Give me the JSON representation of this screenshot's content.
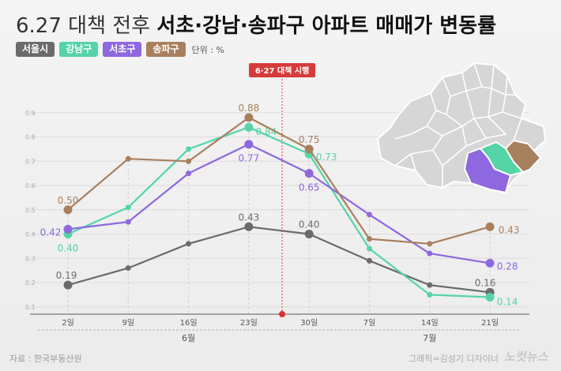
{
  "header": {
    "title_prefix": "6.27 대책 전후",
    "title_main": "서초·강남·송파구 아파트 매매가 변동률"
  },
  "legend": {
    "items": [
      {
        "label": "서울시",
        "color": "#6b6b6b"
      },
      {
        "label": "강남구",
        "color": "#55d4a8"
      },
      {
        "label": "서초구",
        "color": "#8e68df"
      },
      {
        "label": "송파구",
        "color": "#a8805d"
      }
    ],
    "unit": "단위 : %"
  },
  "annotation": {
    "label": "6·27 대책 시행",
    "color": "#d63a3a"
  },
  "footer": {
    "source": "자료 : 한국부동산원",
    "credit": "그래픽=김성기 디자이너",
    "brand": "노컷뉴스"
  },
  "map": {
    "highlight": [
      "서초구",
      "강남구",
      "송파구"
    ]
  },
  "chart_data": {
    "type": "line",
    "x": [
      "2일",
      "9일",
      "16일",
      "23일",
      "30일",
      "7일",
      "14일",
      "21일"
    ],
    "month_groups": [
      {
        "label": "6월",
        "start": 0,
        "end": 4
      },
      {
        "label": "7월",
        "start": 5,
        "end": 7
      }
    ],
    "yticks": [
      "0.1",
      "0.2",
      "0.3",
      "0.4",
      "0.5",
      "0.6",
      "0.7",
      "0.8",
      "0.9"
    ],
    "ylim": [
      0.07,
      1.0
    ],
    "event_between": [
      3,
      4
    ],
    "series": [
      {
        "name": "서울시",
        "color": "#6b6b6b",
        "values": [
          0.19,
          0.26,
          0.36,
          0.43,
          0.4,
          0.29,
          0.19,
          0.16
        ],
        "labels": [
          {
            "i": 0,
            "text": "0.19"
          },
          {
            "i": 3,
            "text": "0.43"
          },
          {
            "i": 4,
            "text": "0.40"
          },
          {
            "i": 7,
            "text": "0.16"
          }
        ]
      },
      {
        "name": "강남구",
        "color": "#55d4a8",
        "values": [
          0.4,
          0.51,
          0.75,
          0.84,
          0.73,
          0.34,
          0.15,
          0.14
        ],
        "labels": [
          {
            "i": 0,
            "text": "0.40"
          },
          {
            "i": 3,
            "text": "0.84"
          },
          {
            "i": 4,
            "text": "0.73"
          },
          {
            "i": 7,
            "text": "0.14"
          }
        ]
      },
      {
        "name": "서초구",
        "color": "#8e68df",
        "values": [
          0.42,
          0.45,
          0.65,
          0.77,
          0.65,
          0.48,
          0.32,
          0.28
        ],
        "labels": [
          {
            "i": 0,
            "text": "0.42"
          },
          {
            "i": 3,
            "text": "0.77"
          },
          {
            "i": 4,
            "text": "0.65"
          },
          {
            "i": 7,
            "text": "0.28"
          }
        ]
      },
      {
        "name": "송파구",
        "color": "#a8805d",
        "values": [
          0.5,
          0.71,
          0.7,
          0.88,
          0.75,
          0.38,
          0.36,
          0.43
        ],
        "labels": [
          {
            "i": 0,
            "text": "0.50"
          },
          {
            "i": 3,
            "text": "0.88"
          },
          {
            "i": 4,
            "text": "0.75"
          },
          {
            "i": 7,
            "text": "0.43"
          }
        ]
      }
    ]
  }
}
